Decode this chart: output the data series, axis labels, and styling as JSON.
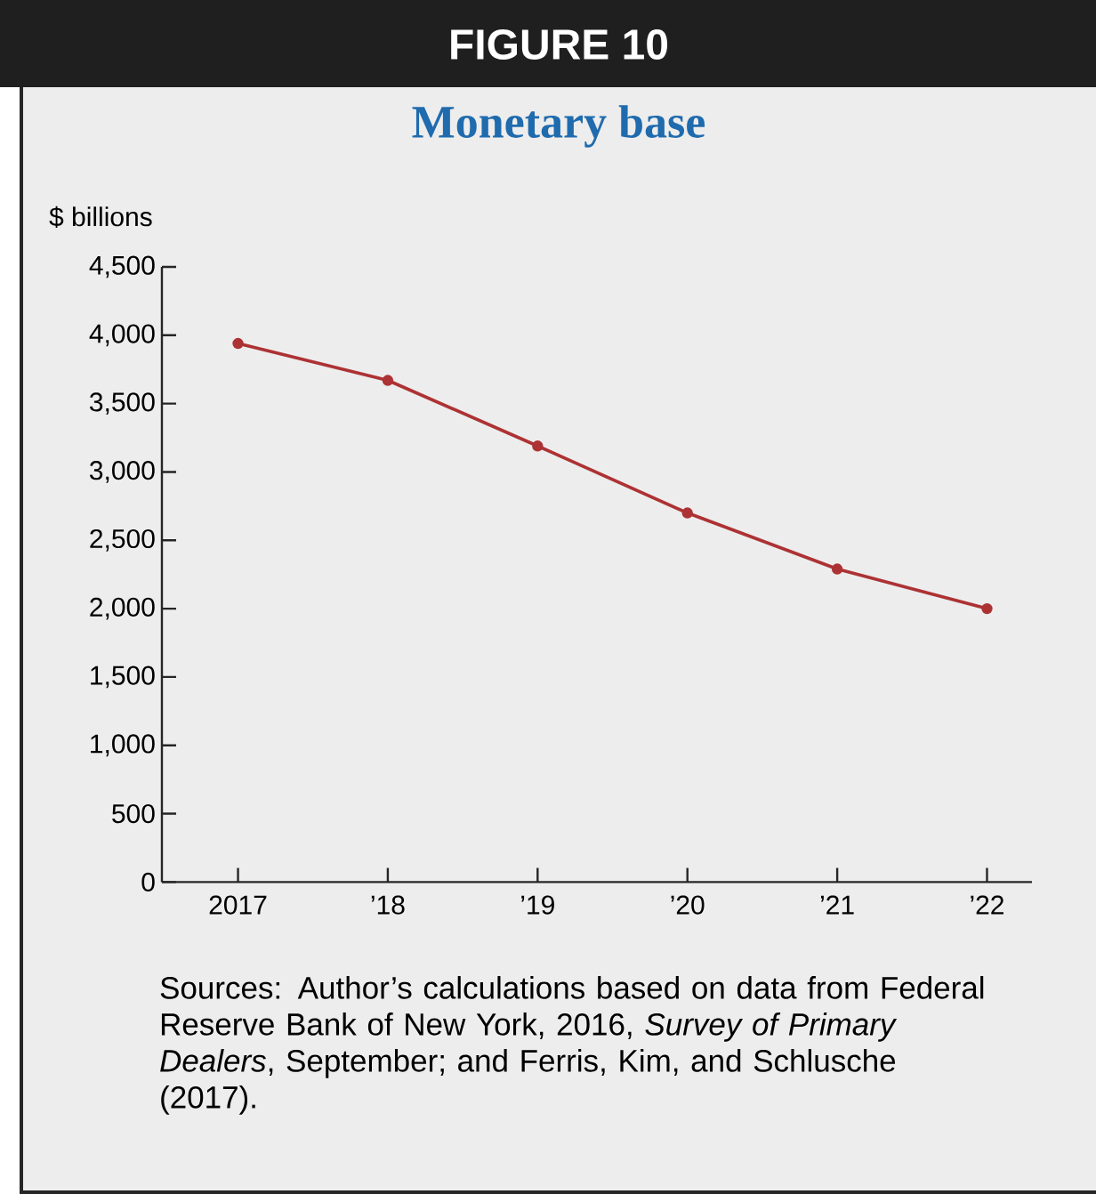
{
  "chart_data": {
    "type": "line",
    "title": "FIGURE 10",
    "subtitle": "Monetary base",
    "ylabel": "$ billions",
    "categories": [
      "2017",
      "’18",
      "’19",
      "’20",
      "’21",
      "’22"
    ],
    "series": [
      {
        "color": "#ad3234",
        "values": [
          3940,
          3670,
          3190,
          2700,
          2290,
          2000
        ]
      }
    ],
    "ylim": [
      0,
      4500
    ],
    "yticks": [
      0,
      500,
      {
        "value": 1000,
        "label": "1,000"
      },
      {
        "value": 1500,
        "label": "1,500"
      },
      {
        "value": 2000,
        "label": "2,000"
      },
      {
        "value": 2500,
        "label": "2,500"
      },
      {
        "value": 3000,
        "label": "3,000"
      },
      {
        "value": 3500,
        "label": "3,500"
      },
      {
        "value": 4000,
        "label": "4,000"
      },
      {
        "value": 4500,
        "label": "4,500"
      }
    ],
    "marker": "circle",
    "line_style": "solid",
    "annotations": [
      "Sources: Author’s calculations based on data from Federal Reserve Bank of New York, 2016, *Survey of Primary Dealers*, September; and Ferris, Kim, and Schlusche (2017)."
    ]
  }
}
